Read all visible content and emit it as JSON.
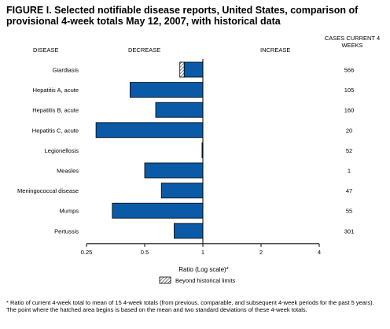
{
  "title": "FIGURE I. Selected notifiable disease reports, United States, comparison of provisional 4-week totals May 12, 2007, with historical data",
  "headers": {
    "disease": "DISEASE",
    "decrease": "DECREASE",
    "increase": "INCREASE",
    "cases": "CASES CURRENT 4 WEEKS"
  },
  "legend": {
    "label": "Beyond historical limits"
  },
  "footnote": "* Ratio of current 4-week total to mean of 15 4-week totals (from previous, comparable, and subsequent 4-week periods for the past 5 years). The point where the hatched area begins is based on the mean and two standard deviations of these 4-week totals.",
  "colors": {
    "bar": "#0b5aa8",
    "bar_stroke": "#000000"
  },
  "chart_data": {
    "type": "bar",
    "orientation": "horizontal",
    "scale": "log2",
    "xlabel": "Ratio (Log scale)*",
    "xlim": [
      0.25,
      4
    ],
    "xticks": [
      {
        "value": 0.25,
        "label": "0.25"
      },
      {
        "value": 0.5,
        "label": "0.5"
      },
      {
        "value": 1,
        "label": "1"
      },
      {
        "value": 2,
        "label": "2"
      },
      {
        "value": 4,
        "label": "4"
      }
    ],
    "baseline": 1,
    "categories": [
      "Giardiasis",
      "Hepatitis A, acute",
      "Hepatitis B, acute",
      "Hepatitis C, acute",
      "Legionellosis",
      "Measles",
      "Meningococcal disease",
      "Mumps",
      "Pertussis"
    ],
    "values": [
      0.8,
      0.42,
      0.57,
      0.28,
      0.99,
      0.5,
      0.61,
      0.34,
      0.71
    ],
    "beyond_historical_limits_start": [
      0.76,
      null,
      null,
      null,
      null,
      null,
      null,
      null,
      null
    ],
    "cases_current_4_weeks": [
      "566",
      "105",
      "160",
      "20",
      "52",
      "1",
      "47",
      "55",
      "301"
    ]
  }
}
